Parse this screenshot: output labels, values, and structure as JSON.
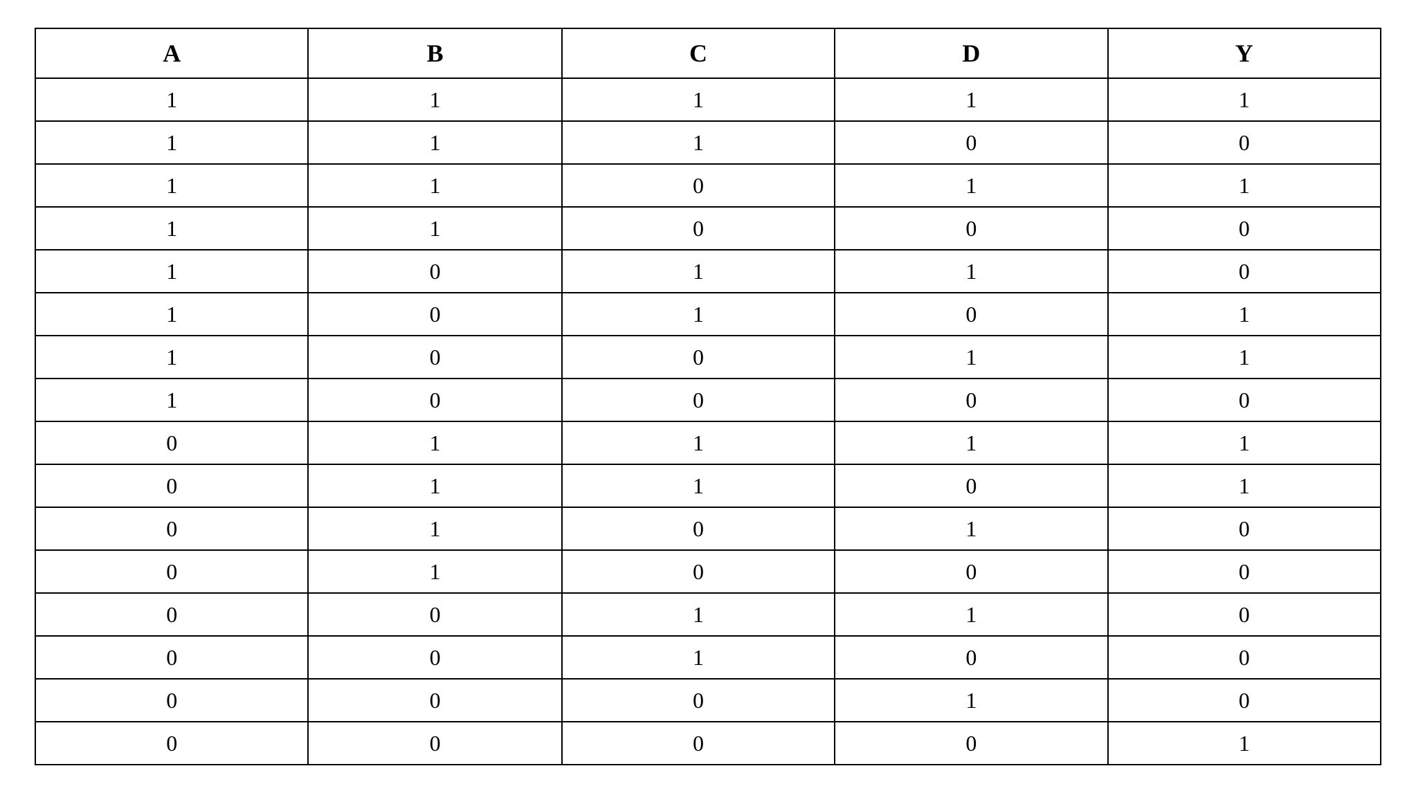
{
  "truth_table": {
    "type": "table",
    "columns": [
      "A",
      "B",
      "C",
      "D",
      "Y"
    ],
    "rows": [
      [
        "1",
        "1",
        "1",
        "1",
        "1"
      ],
      [
        "1",
        "1",
        "1",
        "0",
        "0"
      ],
      [
        "1",
        "1",
        "0",
        "1",
        "1"
      ],
      [
        "1",
        "1",
        "0",
        "0",
        "0"
      ],
      [
        "1",
        "0",
        "1",
        "1",
        "0"
      ],
      [
        "1",
        "0",
        "1",
        "0",
        "1"
      ],
      [
        "1",
        "0",
        "0",
        "1",
        "1"
      ],
      [
        "1",
        "0",
        "0",
        "0",
        "0"
      ],
      [
        "0",
        "1",
        "1",
        "1",
        "1"
      ],
      [
        "0",
        "1",
        "1",
        "0",
        "1"
      ],
      [
        "0",
        "1",
        "0",
        "1",
        "0"
      ],
      [
        "0",
        "1",
        "0",
        "0",
        "0"
      ],
      [
        "0",
        "0",
        "1",
        "1",
        "0"
      ],
      [
        "0",
        "0",
        "1",
        "0",
        "0"
      ],
      [
        "0",
        "0",
        "0",
        "1",
        "0"
      ],
      [
        "0",
        "0",
        "0",
        "0",
        "1"
      ]
    ],
    "column_count": 5,
    "row_count": 16,
    "background_color": "#ffffff",
    "border_color": "#000000",
    "border_width": 2,
    "header_fontsize": 36,
    "header_fontweight": "bold",
    "cell_fontsize": 32,
    "cell_fontweight": "normal",
    "text_color": "#000000",
    "text_align": "center",
    "font_family": "Times New Roman"
  }
}
